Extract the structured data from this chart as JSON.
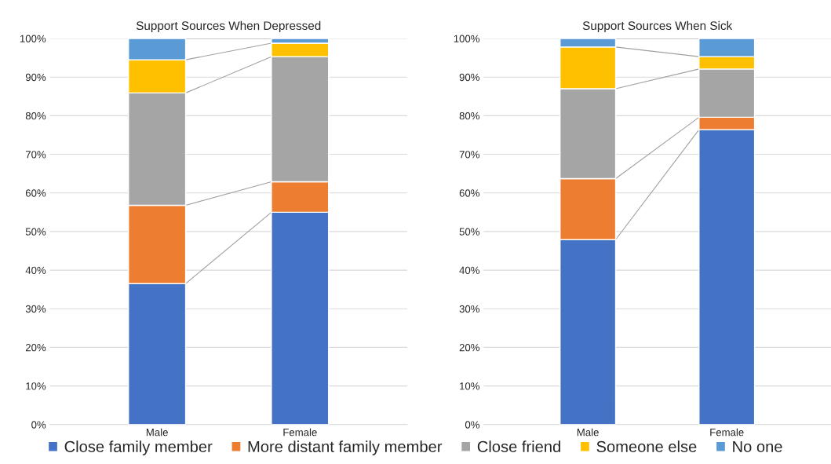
{
  "chart_data": [
    {
      "type": "bar",
      "stacked": true,
      "title": "Support Sources When Depressed",
      "categories": [
        "Male",
        "Female"
      ],
      "ylim": [
        0,
        100
      ],
      "yticks": [
        {
          "value": 0,
          "label": "0%"
        },
        {
          "value": 10,
          "label": "10%"
        },
        {
          "value": 20,
          "label": "20%"
        },
        {
          "value": 30,
          "label": "30%"
        },
        {
          "value": 40,
          "label": "40%"
        },
        {
          "value": 50,
          "label": "50%"
        },
        {
          "value": 60,
          "label": "60%"
        },
        {
          "value": 70,
          "label": "70%"
        },
        {
          "value": 80,
          "label": "80%"
        },
        {
          "value": 90,
          "label": "90%"
        },
        {
          "value": 100,
          "label": "100%"
        }
      ],
      "grid": "y",
      "legend": "bottom",
      "series": [
        {
          "name": "Close family member",
          "color": "#4472c4",
          "values": [
            36.5,
            55.0
          ]
        },
        {
          "name": "More distant family member",
          "color": "#ed7d31",
          "values": [
            20.3,
            7.9
          ]
        },
        {
          "name": "Close friend",
          "color": "#a5a5a5",
          "values": [
            29.1,
            32.4
          ]
        },
        {
          "name": "Someone else",
          "color": "#ffc000",
          "values": [
            8.6,
            3.5
          ]
        },
        {
          "name": "No one",
          "color": "#5b9bd5",
          "values": [
            5.5,
            1.2
          ]
        }
      ]
    },
    {
      "type": "bar",
      "stacked": true,
      "title": "Support Sources When Sick",
      "categories": [
        "Male",
        "Female"
      ],
      "ylim": [
        0,
        100
      ],
      "yticks": [
        {
          "value": 0,
          "label": "0%"
        },
        {
          "value": 10,
          "label": "10%"
        },
        {
          "value": 20,
          "label": "20%"
        },
        {
          "value": 30,
          "label": "30%"
        },
        {
          "value": 40,
          "label": "40%"
        },
        {
          "value": 50,
          "label": "50%"
        },
        {
          "value": 60,
          "label": "60%"
        },
        {
          "value": 70,
          "label": "70%"
        },
        {
          "value": 80,
          "label": "80%"
        },
        {
          "value": 90,
          "label": "90%"
        },
        {
          "value": 100,
          "label": "100%"
        }
      ],
      "grid": "y",
      "legend": "bottom",
      "series": [
        {
          "name": "Close family member",
          "color": "#4472c4",
          "values": [
            47.9,
            76.4
          ]
        },
        {
          "name": "More distant family member",
          "color": "#ed7d31",
          "values": [
            15.8,
            3.2
          ]
        },
        {
          "name": "Close friend",
          "color": "#a5a5a5",
          "values": [
            23.3,
            12.5
          ]
        },
        {
          "name": "Someone else",
          "color": "#ffc000",
          "values": [
            10.8,
            3.2
          ]
        },
        {
          "name": "No one",
          "color": "#5b9bd5",
          "values": [
            2.2,
            4.7
          ]
        }
      ]
    }
  ]
}
